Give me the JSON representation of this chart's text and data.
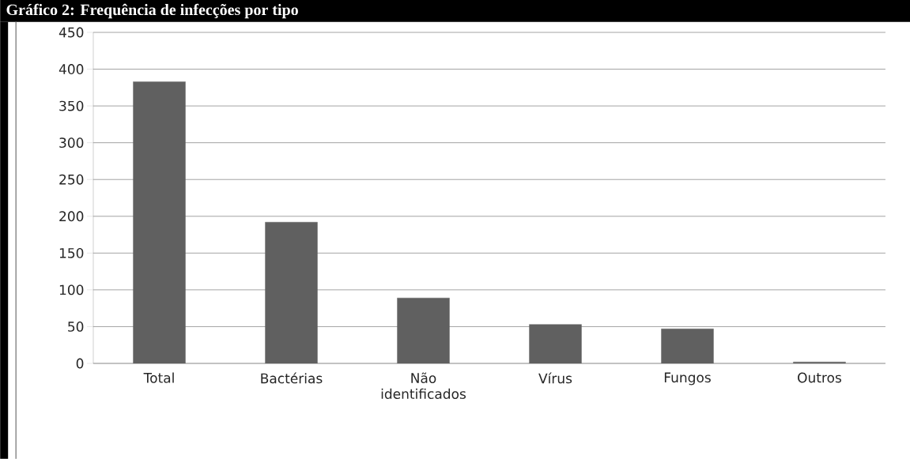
{
  "chart_data": {
    "type": "bar",
    "title": "Gráfico 2: Frequência de infecções por tipo",
    "categories": [
      "Total",
      "Bactérias",
      "Não identificados",
      "Vírus",
      "Fungos",
      "Outros"
    ],
    "values": [
      383,
      192,
      89,
      53,
      47,
      2
    ],
    "color": "#606060",
    "ylim": [
      0,
      450
    ],
    "yticks": [
      0,
      50,
      100,
      150,
      200,
      250,
      300,
      350,
      400,
      450
    ],
    "grid": "y"
  }
}
